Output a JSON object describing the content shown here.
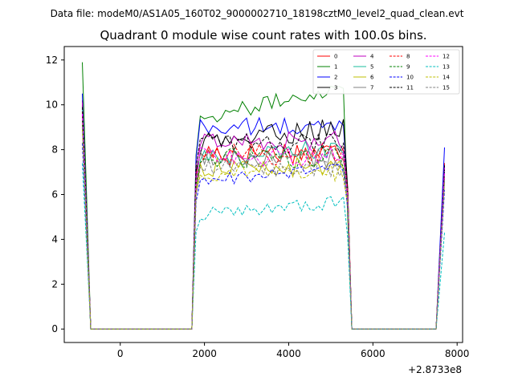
{
  "chart_data": {
    "type": "line",
    "suptitle": "Data file: modeM0/AS1A05_160T02_9000002710_18198cztM0_level2_quad_clean.evt",
    "title": "Quadrant 0 module wise count rates with 100.0s bins.",
    "xlabel": "",
    "ylabel": "",
    "x_offset_label": "+2.8733e8",
    "xlim": [
      -1330,
      8130
    ],
    "ylim": [
      -0.6,
      12.6
    ],
    "xticks": [
      0,
      2000,
      4000,
      6000,
      8000
    ],
    "xtick_labels": [
      "0",
      "2000",
      "4000",
      "6000",
      "8000"
    ],
    "yticks": [
      0,
      2,
      4,
      6,
      8,
      10,
      12
    ],
    "ytick_labels": [
      "0",
      "2",
      "4",
      "6",
      "8",
      "10",
      "12"
    ],
    "legend_position": "top-right",
    "segments": [
      {
        "start": -900,
        "end": -700
      },
      {
        "start": 1700,
        "end": 5500
      },
      {
        "start": 7500,
        "end": 7700
      }
    ],
    "series": [
      {
        "name": "0",
        "color": "#ff0000",
        "dash": "solid",
        "start": 10.2,
        "level": 7.9,
        "amp": 0.55,
        "end": 6.3,
        "right": 7.4
      },
      {
        "name": "1",
        "color": "#008000",
        "dash": "solid",
        "start": 11.9,
        "level": 9.3,
        "amp": 0.35,
        "end": 5.0,
        "right": 7.2,
        "trend": 1.6
      },
      {
        "name": "2",
        "color": "#0000ff",
        "dash": "solid",
        "start": 10.5,
        "level": 9.0,
        "amp": 0.45,
        "end": 6.1,
        "right": 8.1
      },
      {
        "name": "3",
        "color": "#000000",
        "dash": "solid",
        "start": 10.0,
        "level": 8.2,
        "amp": 0.5,
        "end": 6.3,
        "right": 7.3,
        "trend": 0.9
      },
      {
        "name": "4",
        "color": "#bf00bf",
        "dash": "solid",
        "start": 10.1,
        "level": 8.4,
        "amp": 0.45,
        "end": 6.0,
        "right": 7.2
      },
      {
        "name": "5",
        "color": "#1abc9c",
        "dash": "solid",
        "start": 9.8,
        "level": 7.5,
        "amp": 0.45,
        "end": 5.9,
        "right": 7.0,
        "trend": 0.6
      },
      {
        "name": "6",
        "color": "#bfbf00",
        "dash": "solid",
        "start": 9.2,
        "level": 7.2,
        "amp": 0.45,
        "end": 6.0,
        "right": 6.7
      },
      {
        "name": "7",
        "color": "#808080",
        "dash": "solid",
        "start": 9.6,
        "level": 7.6,
        "amp": 0.45,
        "end": 5.8,
        "right": 6.8
      },
      {
        "name": "8",
        "color": "#ff0000",
        "dash": "dashed",
        "start": 9.7,
        "level": 7.8,
        "amp": 0.5,
        "end": 6.2,
        "right": 6.9
      },
      {
        "name": "9",
        "color": "#008000",
        "dash": "dashed",
        "start": 9.3,
        "level": 7.6,
        "amp": 0.45,
        "end": 6.0,
        "right": 6.7
      },
      {
        "name": "10",
        "color": "#0000ff",
        "dash": "dashed",
        "start": 8.3,
        "level": 6.6,
        "amp": 0.3,
        "end": 5.4,
        "right": 6.2,
        "trend": 0.6
      },
      {
        "name": "11",
        "color": "#000000",
        "dash": "dashed",
        "start": 9.9,
        "level": 8.3,
        "amp": 0.45,
        "end": 6.0,
        "right": 7.1
      },
      {
        "name": "12",
        "color": "#ff00ff",
        "dash": "dashed",
        "start": 9.6,
        "level": 7.7,
        "amp": 0.45,
        "end": 5.9,
        "right": 7.0
      },
      {
        "name": "13",
        "color": "#00bfbf",
        "dash": "dashed",
        "start": 7.4,
        "level": 5.1,
        "amp": 0.3,
        "end": 4.1,
        "right": 4.3,
        "trend": 0.6
      },
      {
        "name": "14",
        "color": "#bfbf00",
        "dash": "dashed",
        "start": 8.9,
        "level": 7.0,
        "amp": 0.4,
        "end": 5.6,
        "right": 6.5
      },
      {
        "name": "15",
        "color": "#808080",
        "dash": "dashed",
        "start": 9.0,
        "level": 7.2,
        "amp": 0.4,
        "end": 5.8,
        "right": 6.6
      }
    ]
  }
}
